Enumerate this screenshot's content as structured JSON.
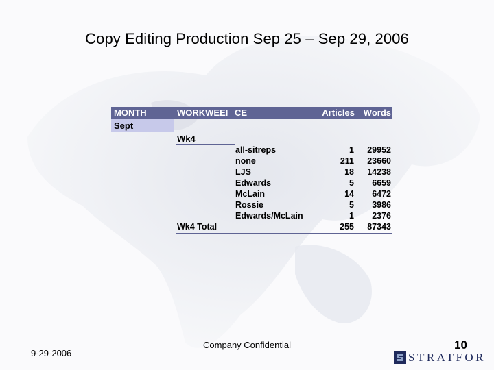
{
  "title": "Copy Editing Production Sep 25 – Sep 29, 2006",
  "table": {
    "headers": {
      "month": "MONTH",
      "workweek": "WORKWEEI",
      "ce": "CE",
      "articles": "Articles",
      "words": "Words"
    },
    "month": "Sept",
    "week": "Wk4",
    "rows": [
      {
        "ce": "all-sitreps",
        "articles": "1",
        "words": "29952"
      },
      {
        "ce": "none",
        "articles": "211",
        "words": "23660"
      },
      {
        "ce": "LJS",
        "articles": "18",
        "words": "14238"
      },
      {
        "ce": "Edwards",
        "articles": "5",
        "words": "6659"
      },
      {
        "ce": "McLain",
        "articles": "14",
        "words": "6472"
      },
      {
        "ce": "Rossie",
        "articles": "5",
        "words": "3986"
      },
      {
        "ce": "Edwards/McLain",
        "articles": "1",
        "words": "2376"
      }
    ],
    "total": {
      "label": "Wk4 Total",
      "articles": "255",
      "words": "87343"
    }
  },
  "footer": {
    "date": "9-29-2006",
    "confidential": "Company Confidential",
    "page": "10",
    "logo_text": "STRATFOR"
  },
  "colors": {
    "header_bg": "#5f6494",
    "month_bg": "#c7c9ea",
    "map": "#e8eaf1"
  }
}
